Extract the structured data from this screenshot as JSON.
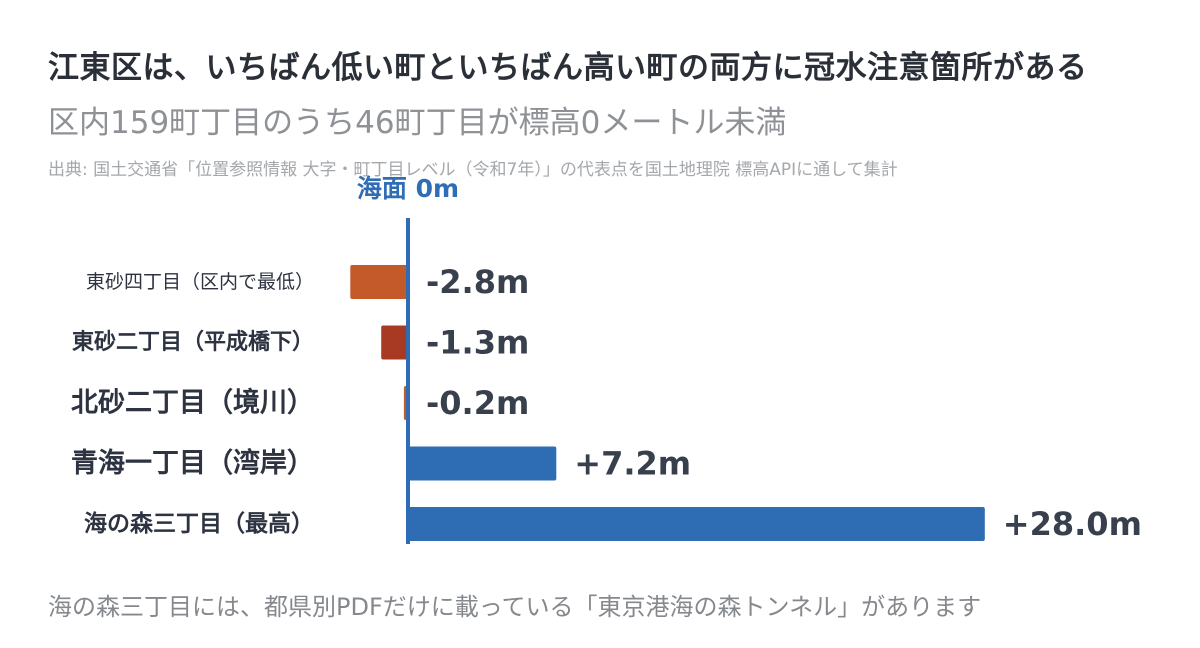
{
  "title": "江東区は、いちばん低い町といちばん高い町の両方に冠水注意箇所がある",
  "subtitle": "区内159町丁目のうち46町丁目が標高0メートル未満",
  "source": "出典: 国土交通省「位置参照情報 大字・町丁目レベル（令和7年）」の代表点を国土地理院 標高APIに通して集計",
  "footnote": "海の森三丁目には、都県別PDFだけに載っている「東京港海の森トンネル」があります",
  "colors": {
    "negative_dark": "#a83a24",
    "negative_light": "#c4592a",
    "positive": "#2e6cb3",
    "zero_line": "#2e6cb3"
  },
  "chart_data": {
    "type": "bar",
    "orientation": "horizontal",
    "zero_label": "海面 0m",
    "categories": [
      "東砂四丁目（区内で最低）",
      "東砂二丁目（平成橋下）",
      "北砂二丁目（境川）",
      "青海一丁目（湾岸）",
      "海の森三丁目（最高）"
    ],
    "values": [
      -2.8,
      -1.3,
      -0.2,
      7.2,
      28.0
    ],
    "value_labels": [
      "-2.8m",
      "-1.3m",
      "-0.2m",
      "+7.2m",
      "+28.0m"
    ],
    "bar_colors": [
      "#c4592a",
      "#a83a24",
      "#c4592a",
      "#2e6cb3",
      "#2e6cb3"
    ]
  }
}
